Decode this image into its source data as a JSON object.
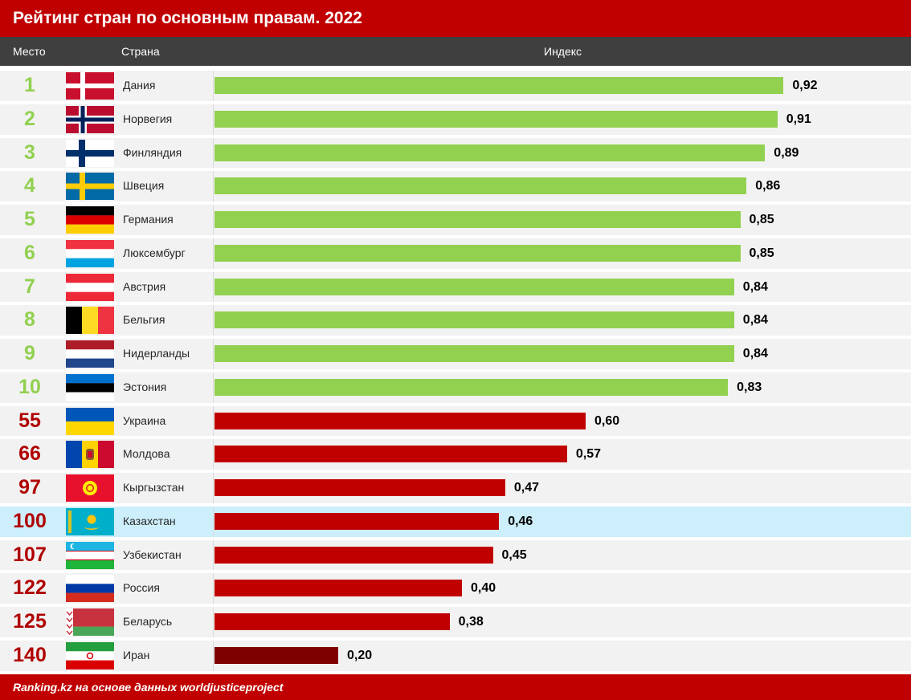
{
  "title": "Рейтинг стран по основным правам. 2022",
  "header": {
    "rank": "Место",
    "country": "Страна",
    "index": "Индекс"
  },
  "footer": "Ranking.kz на основе данных worldjusticeproject",
  "colors": {
    "top10": "#92d050",
    "other": "#c00000",
    "lowest": "#7f0000",
    "highlight": "#cdeefb"
  },
  "chart_data": {
    "type": "bar",
    "orientation": "horizontal",
    "title": "Рейтинг стран по основным правам. 2022",
    "xlabel": "Индекс",
    "xlim": [
      0,
      1
    ],
    "rows": [
      {
        "rank": "1",
        "country": "Дания",
        "flag": "dk",
        "value": 0.92,
        "label": "0,92",
        "color": "green"
      },
      {
        "rank": "2",
        "country": "Норвегия",
        "flag": "no",
        "value": 0.91,
        "label": "0,91",
        "color": "green"
      },
      {
        "rank": "3",
        "country": "Финляндия",
        "flag": "fi",
        "value": 0.89,
        "label": "0,89",
        "color": "green"
      },
      {
        "rank": "4",
        "country": "Швеция",
        "flag": "se",
        "value": 0.86,
        "label": "0,86",
        "color": "green"
      },
      {
        "rank": "5",
        "country": "Германия",
        "flag": "de",
        "value": 0.85,
        "label": "0,85",
        "color": "green"
      },
      {
        "rank": "6",
        "country": "Люксембург",
        "flag": "lu",
        "value": 0.85,
        "label": "0,85",
        "color": "green"
      },
      {
        "rank": "7",
        "country": "Австрия",
        "flag": "at",
        "value": 0.84,
        "label": "0,84",
        "color": "green"
      },
      {
        "rank": "8",
        "country": "Бельгия",
        "flag": "be",
        "value": 0.84,
        "label": "0,84",
        "color": "green"
      },
      {
        "rank": "9",
        "country": "Нидерланды",
        "flag": "nl",
        "value": 0.84,
        "label": "0,84",
        "color": "green"
      },
      {
        "rank": "10",
        "country": "Эстония",
        "flag": "ee",
        "value": 0.83,
        "label": "0,83",
        "color": "green"
      },
      {
        "rank": "55",
        "country": "Украина",
        "flag": "ua",
        "value": 0.6,
        "label": "0,60",
        "color": "red"
      },
      {
        "rank": "66",
        "country": "Молдова",
        "flag": "md",
        "value": 0.57,
        "label": "0,57",
        "color": "red"
      },
      {
        "rank": "97",
        "country": "Кыргызстан",
        "flag": "kg",
        "value": 0.47,
        "label": "0,47",
        "color": "red"
      },
      {
        "rank": "100",
        "country": "Казахстан",
        "flag": "kz",
        "value": 0.46,
        "label": "0,46",
        "color": "red",
        "highlight": true
      },
      {
        "rank": "107",
        "country": "Узбекистан",
        "flag": "uz",
        "value": 0.45,
        "label": "0,45",
        "color": "red"
      },
      {
        "rank": "122",
        "country": "Россия",
        "flag": "ru",
        "value": 0.4,
        "label": "0,40",
        "color": "red"
      },
      {
        "rank": "125",
        "country": "Беларусь",
        "flag": "by",
        "value": 0.38,
        "label": "0,38",
        "color": "red"
      },
      {
        "rank": "140",
        "country": "Иран",
        "flag": "ir",
        "value": 0.2,
        "label": "0,20",
        "color": "darkred"
      }
    ]
  }
}
